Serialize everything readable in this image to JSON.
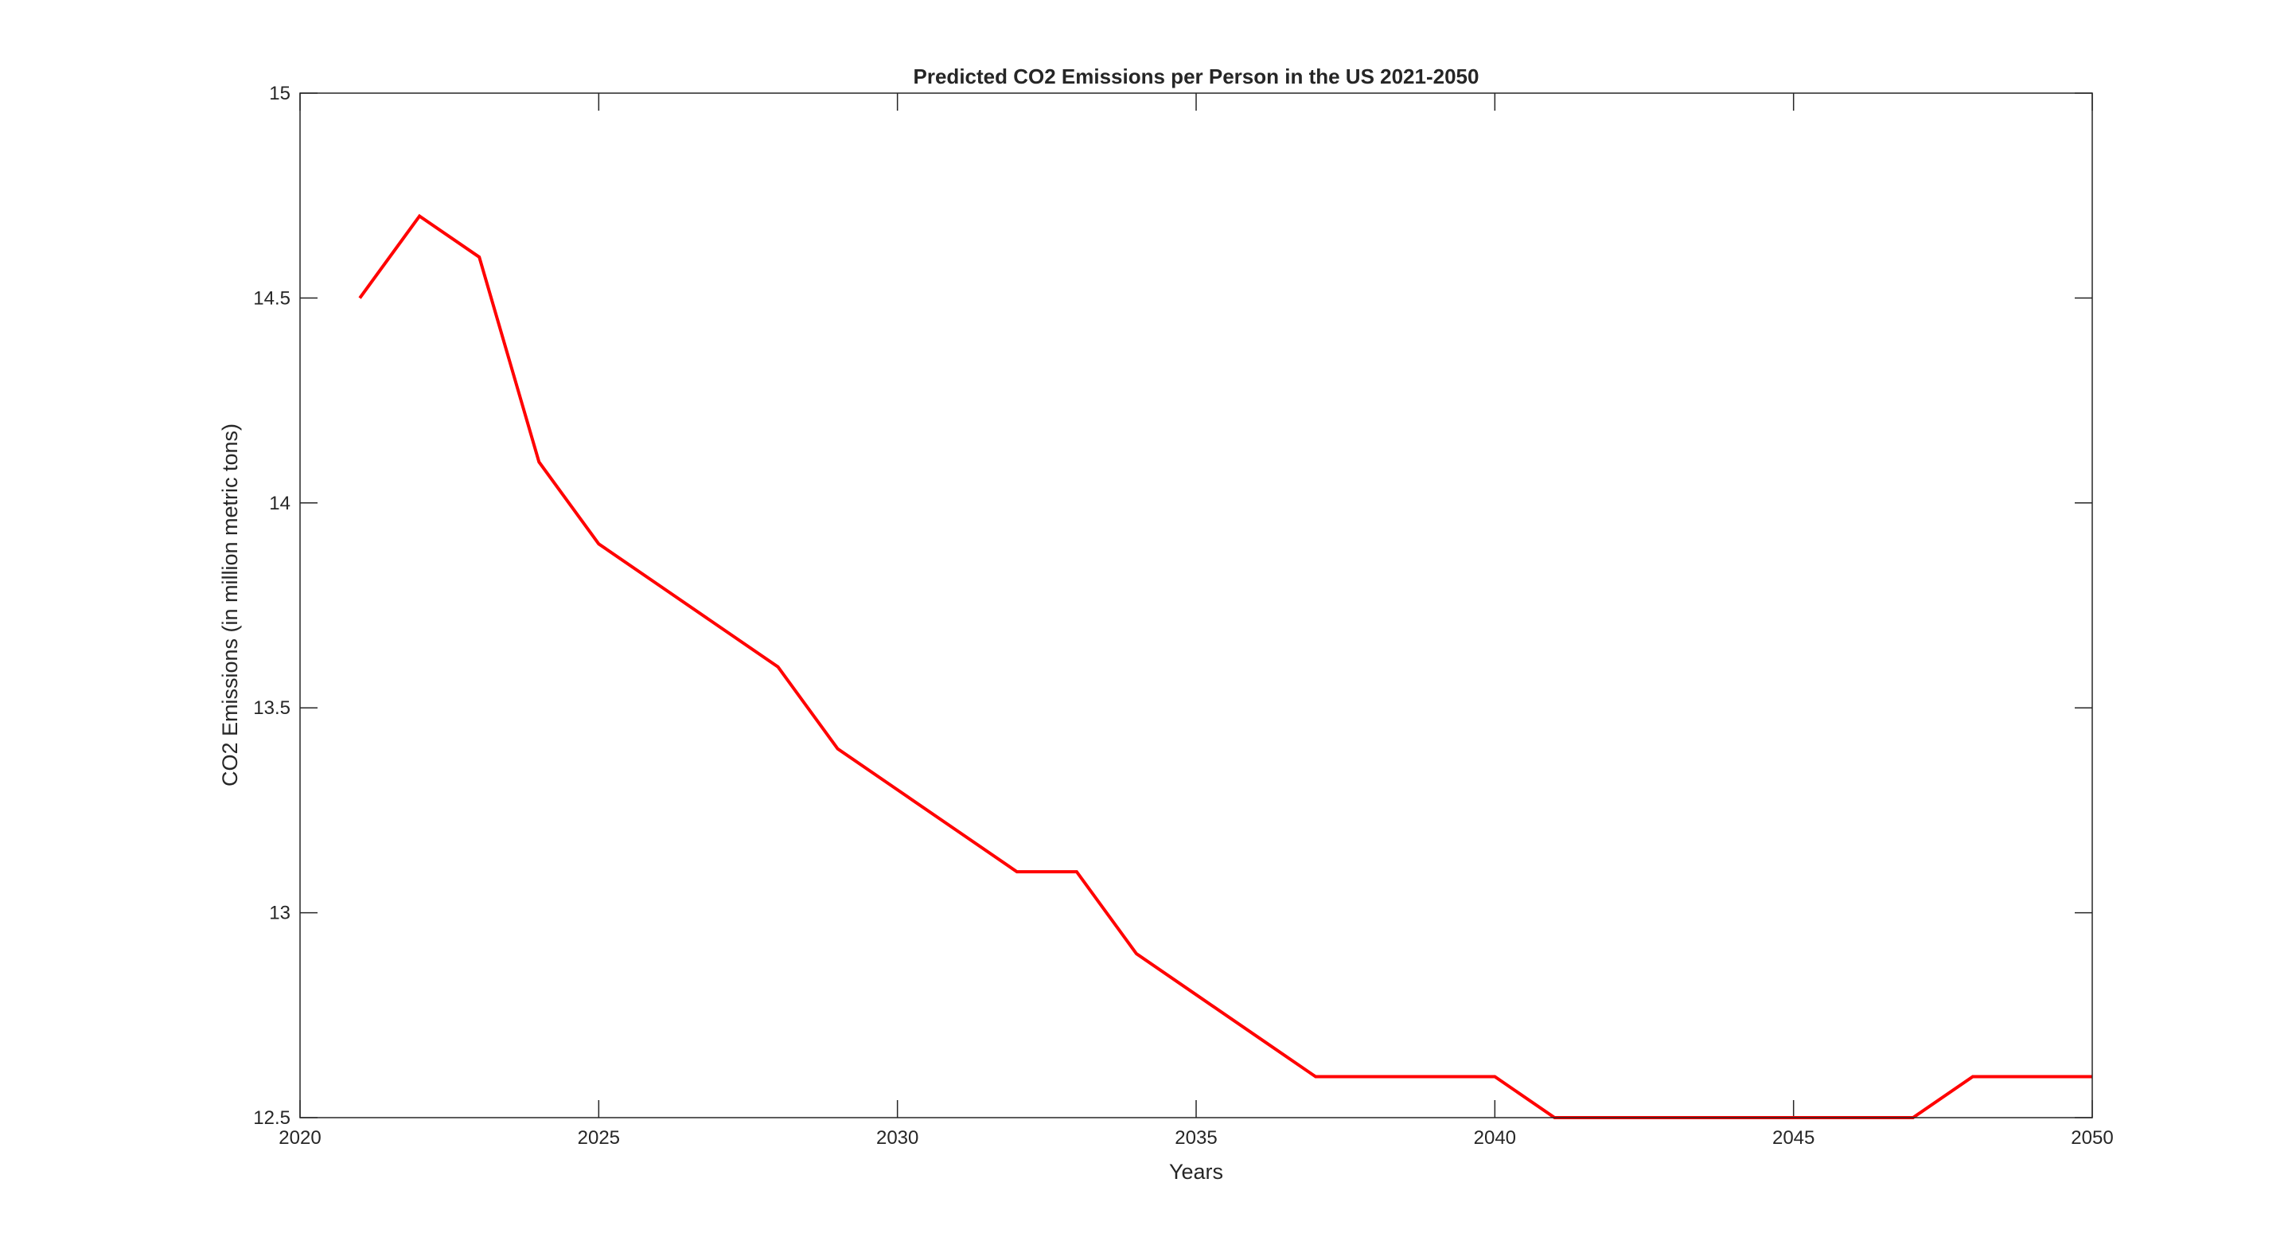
{
  "chart_data": {
    "type": "line",
    "title": "Predicted CO2 Emissions per Person in the US 2021-2050",
    "xlabel": "Years",
    "ylabel": "CO2 Emissions (in million metric tons)",
    "xlim": [
      2020,
      2050
    ],
    "ylim": [
      12.5,
      15
    ],
    "xticks": [
      2020,
      2025,
      2030,
      2035,
      2040,
      2045,
      2050
    ],
    "xtick_labels": [
      "2020",
      "2025",
      "2030",
      "2035",
      "2040",
      "2045",
      "2050"
    ],
    "yticks": [
      12.5,
      13,
      13.5,
      14,
      14.5,
      15
    ],
    "ytick_labels": [
      "12.5",
      "13",
      "13.5",
      "14",
      "14.5",
      "15"
    ],
    "grid": false,
    "box": true,
    "series": [
      {
        "color": "#ff0000",
        "x": [
          2021,
          2022,
          2023,
          2024,
          2025,
          2026,
          2027,
          2028,
          2029,
          2030,
          2031,
          2032,
          2033,
          2034,
          2035,
          2036,
          2037,
          2038,
          2039,
          2040,
          2041,
          2042,
          2043,
          2044,
          2045,
          2046,
          2047,
          2048,
          2049,
          2050
        ],
        "y": [
          14.5,
          14.7,
          14.6,
          14.1,
          13.9,
          13.8,
          13.7,
          13.6,
          13.4,
          13.3,
          13.2,
          13.1,
          13.1,
          12.9,
          12.8,
          12.7,
          12.6,
          12.6,
          12.6,
          12.6,
          12.5,
          12.5,
          12.5,
          12.5,
          12.5,
          12.5,
          12.5,
          12.6,
          12.6,
          12.6
        ]
      }
    ]
  }
}
